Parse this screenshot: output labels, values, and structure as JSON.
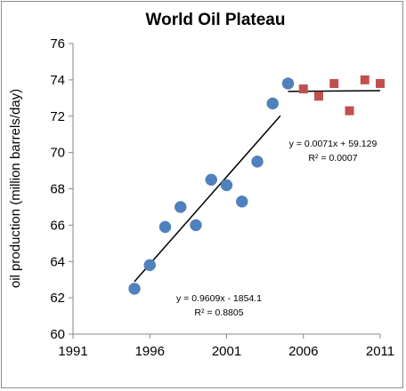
{
  "chart_data": {
    "type": "scatter",
    "title": "World Oil Plateau",
    "xlabel": "",
    "ylabel": "oil production  (million barrels/day)",
    "xlim": [
      1991,
      2011
    ],
    "ylim": [
      60,
      76
    ],
    "xticks": [
      1991,
      1996,
      2001,
      2006,
      2011
    ],
    "yticks": [
      60,
      62,
      64,
      66,
      68,
      70,
      72,
      74,
      76
    ],
    "grid": false,
    "series": [
      {
        "marker": "circle",
        "color": "#4f81bd",
        "points": [
          {
            "x": 1995,
            "y": 62.5
          },
          {
            "x": 1996,
            "y": 63.8
          },
          {
            "x": 1997,
            "y": 65.9
          },
          {
            "x": 1998,
            "y": 67.0
          },
          {
            "x": 1999,
            "y": 66.0
          },
          {
            "x": 2000,
            "y": 68.5
          },
          {
            "x": 2001,
            "y": 68.2
          },
          {
            "x": 2002,
            "y": 67.3
          },
          {
            "x": 2003,
            "y": 69.5
          },
          {
            "x": 2004,
            "y": 72.7
          },
          {
            "x": 2005,
            "y": 73.8
          }
        ],
        "trendline": {
          "x_from": 1995,
          "x_to": 2004.5,
          "slope": 0.9609,
          "intercept": -1854.1,
          "color": "#000000"
        },
        "equation": "y = 0.9609x - 1854.1",
        "r2": "R² = 0.8805"
      },
      {
        "marker": "square",
        "color": "#c0504d",
        "points": [
          {
            "x": 2005,
            "y": 73.8
          },
          {
            "x": 2006,
            "y": 73.5
          },
          {
            "x": 2007,
            "y": 73.1
          },
          {
            "x": 2008,
            "y": 73.8
          },
          {
            "x": 2009,
            "y": 72.3
          },
          {
            "x": 2010,
            "y": 74.0
          },
          {
            "x": 2011,
            "y": 73.8
          }
        ],
        "trendline": {
          "x_from": 2005,
          "x_to": 2011,
          "slope": 0.0071,
          "intercept": 59.129,
          "color": "#000000"
        },
        "equation": "y = 0.0071x + 59.129",
        "r2": "R² = 0.0007"
      }
    ]
  }
}
